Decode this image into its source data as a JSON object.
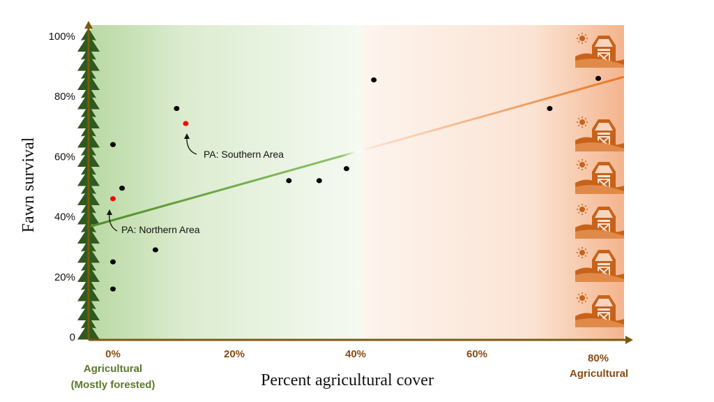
{
  "chart_data": {
    "type": "scatter",
    "title": "",
    "xlabel": "Percent agricultural cover",
    "ylabel": "Fawn survival",
    "xlim": [
      -1,
      88
    ],
    "ylim": [
      0,
      100
    ],
    "x_ticks": [
      {
        "value": 0,
        "label": "0%"
      },
      {
        "value": 20,
        "label": "20%"
      },
      {
        "value": 40,
        "label": "40%"
      },
      {
        "value": 60,
        "label": "60%"
      },
      {
        "value": 80,
        "label": "80%"
      }
    ],
    "y_ticks": [
      {
        "value": 0,
        "label": "0"
      },
      {
        "value": 20,
        "label": "20%"
      },
      {
        "value": 40,
        "label": "40%"
      },
      {
        "value": 60,
        "label": "60%"
      },
      {
        "value": 80,
        "label": "80%"
      },
      {
        "value": 100,
        "label": "100%"
      }
    ],
    "x_sublabels": {
      "left": [
        "Agricultural",
        "(Mostly forested)"
      ],
      "right": [
        "Agricultural"
      ]
    },
    "points": [
      {
        "x": 0,
        "y": 64,
        "color": "#000000"
      },
      {
        "x": 0,
        "y": 46,
        "color": "#ff0000"
      },
      {
        "x": 0,
        "y": 25,
        "color": "#000000"
      },
      {
        "x": 0,
        "y": 16,
        "color": "#000000"
      },
      {
        "x": 1.5,
        "y": 49.5,
        "color": "#000000"
      },
      {
        "x": 7,
        "y": 29,
        "color": "#000000"
      },
      {
        "x": 10.5,
        "y": 76,
        "color": "#000000"
      },
      {
        "x": 12,
        "y": 71,
        "color": "#ff0000"
      },
      {
        "x": 29,
        "y": 52,
        "color": "#000000"
      },
      {
        "x": 34,
        "y": 52,
        "color": "#000000"
      },
      {
        "x": 38.5,
        "y": 56,
        "color": "#000000"
      },
      {
        "x": 43,
        "y": 85.5,
        "color": "#000000"
      },
      {
        "x": 72,
        "y": 76,
        "color": "#000000"
      },
      {
        "x": 80,
        "y": 86,
        "color": "#000000"
      }
    ],
    "trendline": {
      "x": [
        0,
        88
      ],
      "y": [
        37.5,
        86.5
      ]
    },
    "annotations": [
      {
        "text": "PA: Southern Area",
        "point_index": 7
      },
      {
        "text": "PA: Northern Area",
        "point_index": 1
      }
    ],
    "background_zones": [
      {
        "label": "forested",
        "color": "#6aa84f"
      },
      {
        "label": "agricultural",
        "color": "#f0a070"
      }
    ],
    "colors": {
      "green_line": "#5a8a2a",
      "orange_line": "#e87a30",
      "axis": "#7a5a10",
      "tree": "#2f5a1e",
      "barn": "#c8621a"
    },
    "icons": [
      "pine-tree-icon",
      "barn-icon",
      "sun-icon"
    ]
  }
}
